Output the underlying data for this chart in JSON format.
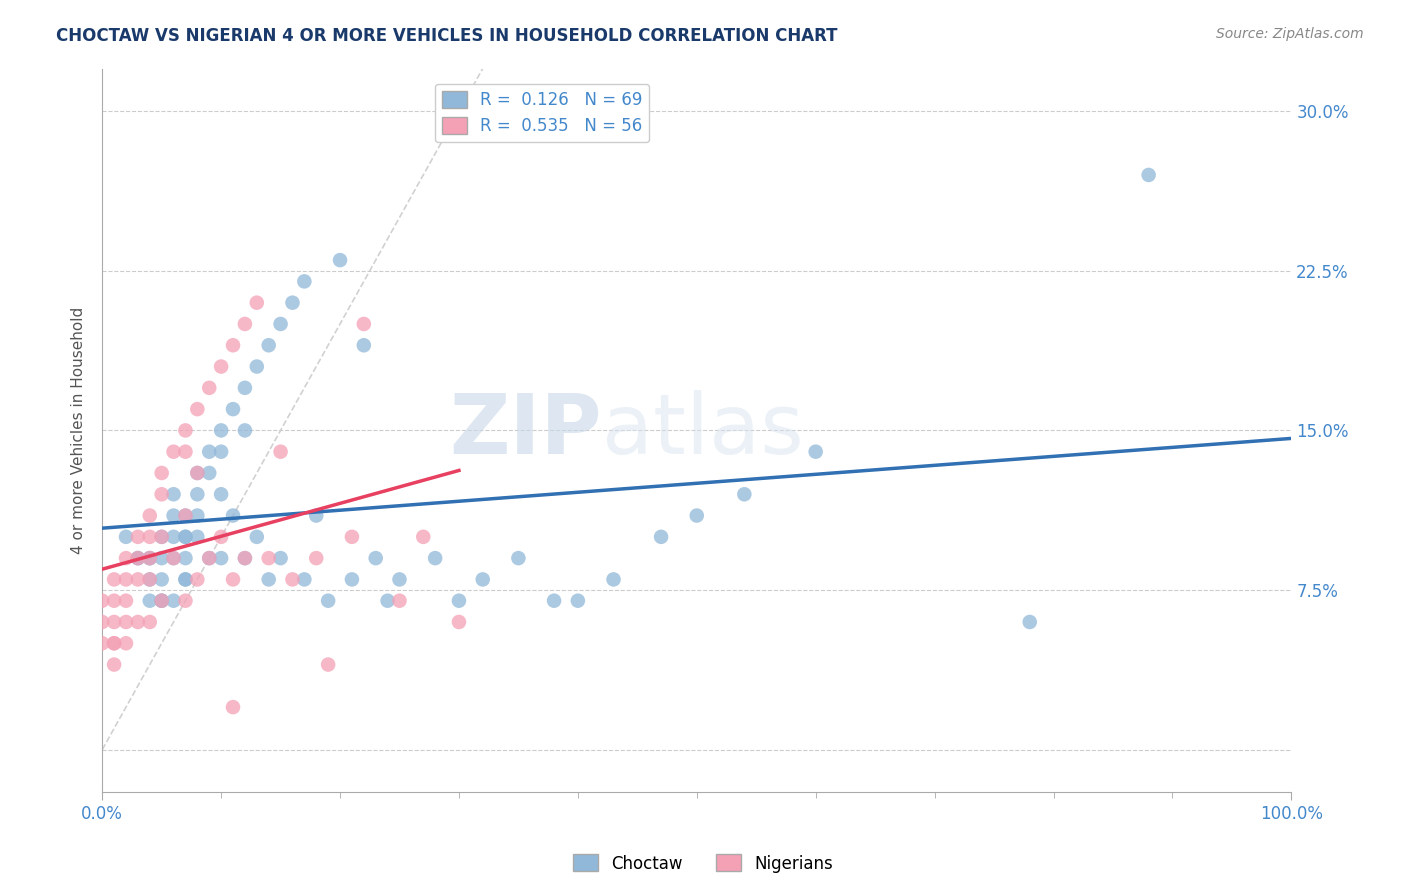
{
  "title": "CHOCTAW VS NIGERIAN 4 OR MORE VEHICLES IN HOUSEHOLD CORRELATION CHART",
  "source": "Source: ZipAtlas.com",
  "ylabel": "4 or more Vehicles in Household",
  "xlim": [
    0.0,
    100.0
  ],
  "ylim": [
    -2.0,
    32.0
  ],
  "yticks": [
    0.0,
    7.5,
    15.0,
    22.5,
    30.0
  ],
  "ytick_labels": [
    "",
    "7.5%",
    "15.0%",
    "22.5%",
    "30.0%"
  ],
  "xtick_labels": [
    "0.0%",
    "100.0%"
  ],
  "choctaw_R": "0.126",
  "choctaw_N": "69",
  "nigerian_R": "0.535",
  "nigerian_N": "56",
  "choctaw_color": "#91b8d9",
  "nigerian_color": "#f4a0b5",
  "choctaw_line_color": "#3070b3",
  "nigerian_line_color": "#e84060",
  "diagonal_color": "#cccccc",
  "watermark_zip": "ZIP",
  "watermark_atlas": "atlas",
  "background_color": "#ffffff",
  "choctaw_x": [
    2,
    3,
    3,
    4,
    4,
    4,
    4,
    5,
    5,
    5,
    5,
    5,
    6,
    6,
    6,
    6,
    6,
    7,
    7,
    7,
    7,
    7,
    7,
    8,
    8,
    8,
    8,
    9,
    9,
    9,
    10,
    10,
    10,
    10,
    11,
    11,
    12,
    12,
    12,
    13,
    13,
    14,
    14,
    15,
    15,
    16,
    17,
    17,
    18,
    19,
    20,
    21,
    22,
    23,
    24,
    25,
    28,
    30,
    32,
    35,
    38,
    40,
    43,
    47,
    50,
    54,
    60,
    78,
    88
  ],
  "choctaw_y": [
    10,
    9,
    9,
    9,
    9,
    8,
    7,
    10,
    9,
    8,
    7,
    7,
    12,
    11,
    10,
    9,
    7,
    11,
    10,
    10,
    9,
    8,
    8,
    13,
    12,
    11,
    10,
    14,
    13,
    9,
    15,
    14,
    12,
    9,
    16,
    11,
    17,
    15,
    9,
    18,
    10,
    19,
    8,
    20,
    9,
    21,
    22,
    8,
    11,
    7,
    23,
    8,
    19,
    9,
    7,
    8,
    9,
    7,
    8,
    9,
    7,
    7,
    8,
    10,
    11,
    12,
    14,
    6,
    27
  ],
  "nigerian_x": [
    0,
    0,
    0,
    1,
    1,
    1,
    1,
    1,
    1,
    2,
    2,
    2,
    2,
    2,
    3,
    3,
    3,
    3,
    4,
    4,
    4,
    4,
    4,
    5,
    5,
    5,
    5,
    6,
    6,
    7,
    7,
    7,
    7,
    8,
    8,
    8,
    9,
    9,
    10,
    10,
    11,
    11,
    12,
    12,
    13,
    14,
    15,
    16,
    18,
    19,
    21,
    22,
    25,
    27,
    30,
    11
  ],
  "nigerian_y": [
    7,
    6,
    5,
    8,
    7,
    6,
    5,
    5,
    4,
    9,
    8,
    7,
    6,
    5,
    10,
    9,
    8,
    6,
    11,
    10,
    9,
    8,
    6,
    13,
    12,
    10,
    7,
    14,
    9,
    15,
    14,
    11,
    7,
    16,
    13,
    8,
    17,
    9,
    18,
    10,
    19,
    8,
    20,
    9,
    21,
    9,
    14,
    8,
    9,
    4,
    10,
    20,
    7,
    10,
    6,
    2
  ]
}
